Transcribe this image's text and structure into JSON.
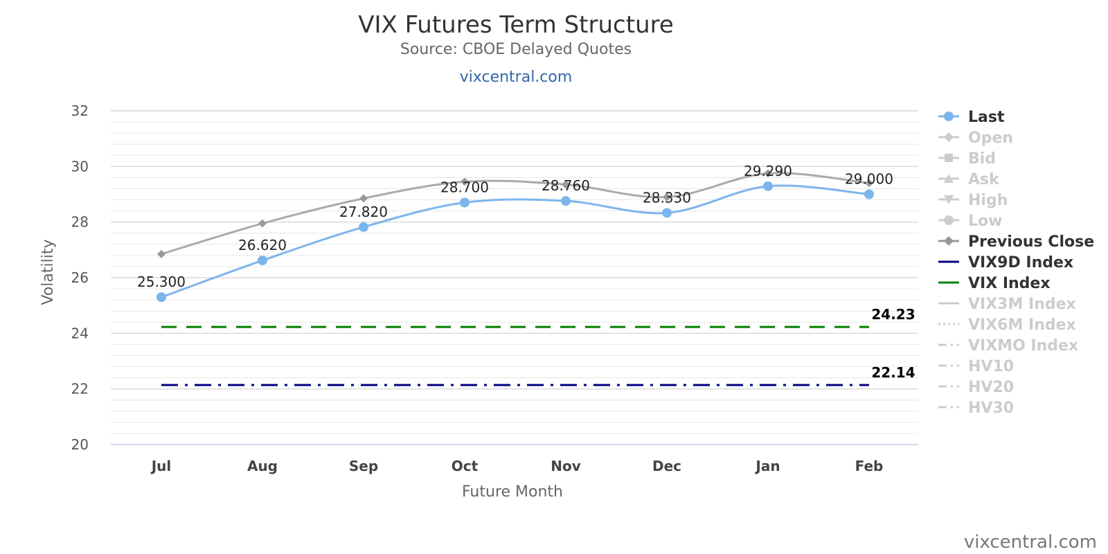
{
  "header": {
    "title": "VIX Futures Term Structure",
    "subtitle": "Source: CBOE Delayed Quotes",
    "link": "vixcentral.com"
  },
  "credits": "vixcentral.com",
  "chart_data": {
    "type": "line",
    "title": "VIX Futures Term Structure",
    "subtitle": "Source: CBOE Delayed Quotes",
    "xlabel": "Future Month",
    "ylabel": "Volatility",
    "categories": [
      "Jul",
      "Aug",
      "Sep",
      "Oct",
      "Nov",
      "Dec",
      "Jan",
      "Feb"
    ],
    "ylim": [
      20,
      32
    ],
    "yticks": [
      20,
      22,
      24,
      26,
      28,
      30,
      32
    ],
    "grid": true,
    "legend_position": "right",
    "series": [
      {
        "name": "Last",
        "values": [
          25.3,
          26.62,
          27.82,
          28.7,
          28.76,
          28.33,
          29.29,
          29.0
        ],
        "color": "#7cb5ec",
        "marker": "circle",
        "labels": [
          "25.300",
          "26.620",
          "27.820",
          "28.700",
          "28.760",
          "28.330",
          "29.290",
          "29.000"
        ]
      },
      {
        "name": "Previous Close",
        "values": [
          26.85,
          27.95,
          28.85,
          29.45,
          29.35,
          28.9,
          29.75,
          29.4
        ],
        "color": "#aaaaaa",
        "marker": "diamond"
      },
      {
        "name": "VIX9D Index",
        "values": [
          22.14,
          22.14,
          22.14,
          22.14,
          22.14,
          22.14,
          22.14,
          22.14
        ],
        "color": "#000080",
        "dash": "dashdot",
        "end_label": "22.14"
      },
      {
        "name": "VIX Index",
        "values": [
          24.23,
          24.23,
          24.23,
          24.23,
          24.23,
          24.23,
          24.23,
          24.23
        ],
        "color": "#008000",
        "dash": "dash",
        "end_label": "24.23"
      }
    ],
    "legend": [
      {
        "name": "Last",
        "active": true,
        "symbol": "circle",
        "color": "#7cb5ec"
      },
      {
        "name": "Open",
        "active": false,
        "symbol": "diamond"
      },
      {
        "name": "Bid",
        "active": false,
        "symbol": "square"
      },
      {
        "name": "Ask",
        "active": false,
        "symbol": "triangle"
      },
      {
        "name": "High",
        "active": false,
        "symbol": "triangle-down"
      },
      {
        "name": "Low",
        "active": false,
        "symbol": "circle"
      },
      {
        "name": "Previous Close",
        "active": true,
        "symbol": "diamond",
        "color": "#999999"
      },
      {
        "name": "VIX9D Index",
        "active": true,
        "symbol": "line",
        "color": "#000080"
      },
      {
        "name": "VIX Index",
        "active": true,
        "symbol": "line",
        "color": "#008000"
      },
      {
        "name": "VIX3M Index",
        "active": false,
        "symbol": "line"
      },
      {
        "name": "VIX6M Index",
        "active": false,
        "symbol": "dotted"
      },
      {
        "name": "VIXMO Index",
        "active": false,
        "symbol": "dashdot"
      },
      {
        "name": "HV10",
        "active": false,
        "symbol": "dashdot"
      },
      {
        "name": "HV20",
        "active": false,
        "symbol": "dashdot"
      },
      {
        "name": "HV30",
        "active": false,
        "symbol": "dashdot"
      }
    ],
    "legend_inactive_color": "#cccccc"
  }
}
